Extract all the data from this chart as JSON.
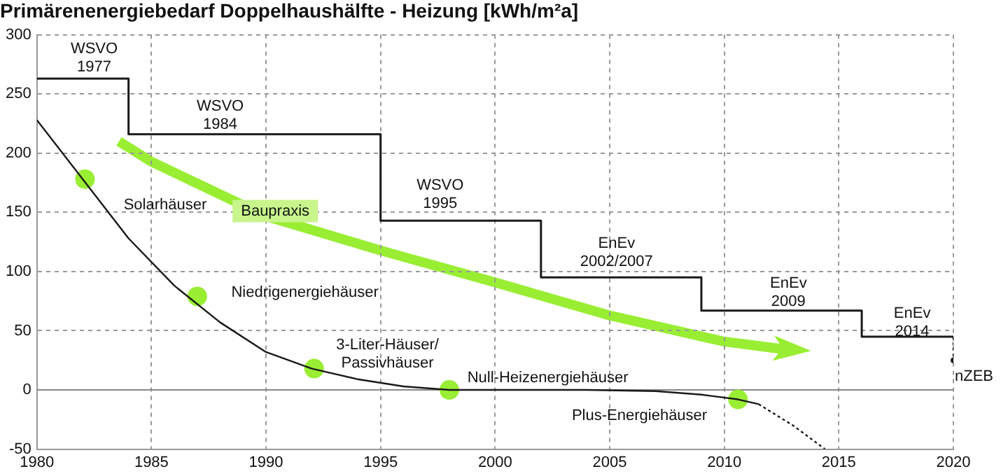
{
  "chart_data": {
    "type": "line",
    "title": "Primärenenergiebedarf Doppelhaushälfte - Heizung [kWh/m²a]",
    "xlim": [
      1980,
      2020
    ],
    "xticks": [
      1980,
      1985,
      1990,
      1995,
      2000,
      2005,
      2010,
      2015,
      2020
    ],
    "ylim": [
      -50,
      300
    ],
    "yticks": [
      -50,
      0,
      50,
      100,
      150,
      200,
      250,
      300
    ],
    "grid": true,
    "legend": false,
    "series": [
      {
        "type": "step",
        "color": "#1a1a1a",
        "x": [
          1980,
          1984,
          1995,
          2002,
          2009,
          2016,
          2020
        ],
        "values": [
          263,
          216,
          143,
          95,
          67,
          45,
          45
        ],
        "marker": "none",
        "line_style": "solid"
      },
      {
        "color": "#1a1a1a",
        "x": [
          2020,
          2020
        ],
        "values": [
          45,
          25
        ],
        "marker": "none",
        "line_style": "dotted"
      },
      {
        "type": "scatter",
        "color": "#1a1a1a",
        "x": [
          2020
        ],
        "values": [
          25
        ],
        "marker": "circle"
      },
      {
        "color": "#1a1a1a",
        "x": [
          1980,
          1982,
          1984,
          1986,
          1988,
          1990,
          1992,
          1994,
          1996,
          1998,
          2004,
          2007,
          2009,
          2010.6,
          2011.5
        ],
        "values": [
          228,
          178,
          128,
          88,
          57,
          32,
          18,
          9,
          3,
          0,
          0,
          -1,
          -4,
          -8,
          -12
        ],
        "marker": "none",
        "line_style": "solid"
      },
      {
        "color": "#1a1a1a",
        "x": [
          2011.5,
          2013,
          2014.4
        ],
        "values": [
          -12,
          -30,
          -50
        ],
        "marker": "none",
        "line_style": "dotted"
      },
      {
        "type": "scatter",
        "color": "#99ee33",
        "x": [
          1982.1,
          1987,
          1992.1,
          1998,
          2010.6
        ],
        "values": [
          178,
          79,
          18,
          0,
          -8
        ],
        "marker": "circle"
      }
    ],
    "ref_lines": [
      {
        "axis": "y",
        "value": 0,
        "color": "#888888"
      }
    ],
    "annotations": [
      "WSVO\n1977",
      "WSVO\n1984",
      "WSVO\n1995",
      "EnEv\n2002/2007",
      "EnEv\n2009",
      "EnEv\n2014",
      "nZEB",
      "Solarhäuser",
      "Niedrigenergiehäuser",
      "3-Liter-Häuser/\nPassivhäuser",
      "Null-Heizenergiehäuser",
      "Plus-Energiehäuser",
      "Baupraxis"
    ]
  }
}
